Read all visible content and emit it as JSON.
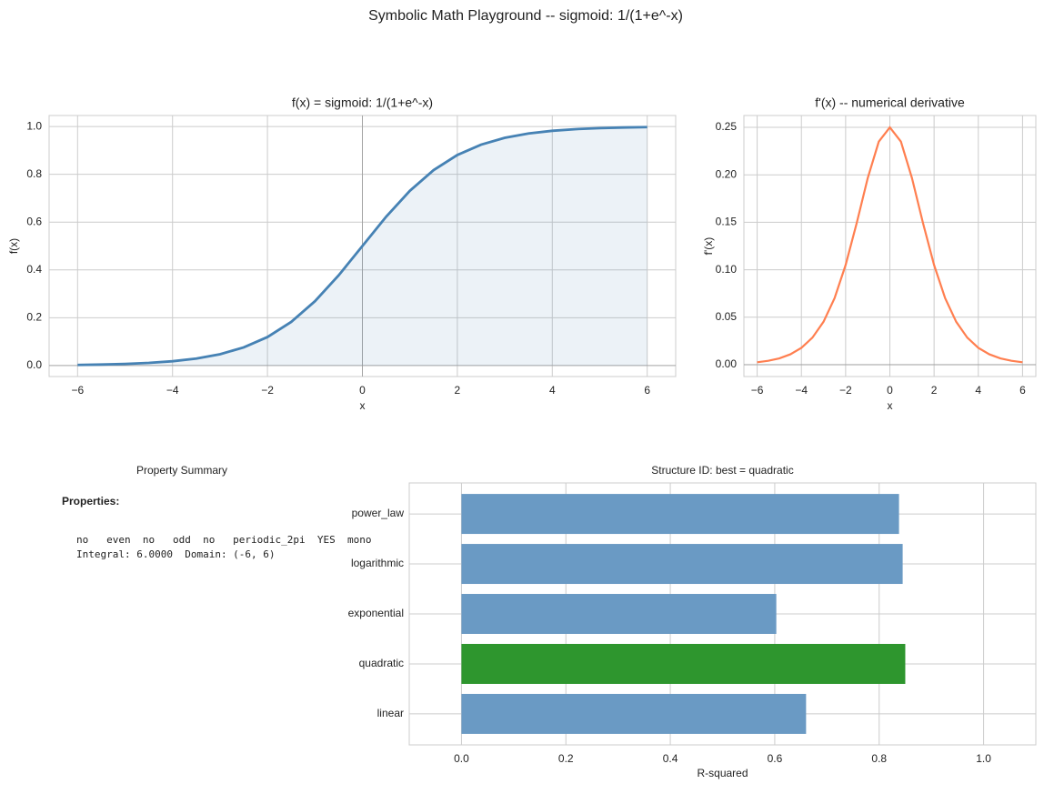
{
  "title": "Symbolic Math Playground -- sigmoid: 1/(1+e^-x)",
  "chart_data": [
    {
      "type": "line",
      "title": "f(x) = sigmoid: 1/(1+e^-x)",
      "xlabel": "x",
      "ylabel": "f(x)",
      "color": "#4682b4",
      "fill": true,
      "grid": true,
      "x": [
        -6,
        -5.5,
        -5,
        -4.5,
        -4,
        -3.5,
        -3,
        -2.5,
        -2,
        -1.5,
        -1,
        -0.5,
        0,
        0.5,
        1,
        1.5,
        2,
        2.5,
        3,
        3.5,
        4,
        4.5,
        5,
        5.5,
        6
      ],
      "values": [
        0.0025,
        0.0041,
        0.0067,
        0.011,
        0.018,
        0.0293,
        0.0474,
        0.0759,
        0.1192,
        0.1824,
        0.2689,
        0.3775,
        0.5,
        0.6225,
        0.7311,
        0.8176,
        0.8808,
        0.9241,
        0.9526,
        0.9707,
        0.982,
        0.989,
        0.9933,
        0.9959,
        0.9975
      ],
      "xlim": [
        -6.6,
        6.6
      ],
      "ylim": [
        -0.046,
        1.046
      ],
      "xticks": [
        {
          "value": -6,
          "label": "−6"
        },
        {
          "value": -4,
          "label": "−4"
        },
        {
          "value": -2,
          "label": "−2"
        },
        0,
        2,
        4,
        6
      ],
      "yticks": [
        {
          "value": 0,
          "label": "0.0"
        },
        0.2,
        0.4,
        0.6,
        0.8,
        {
          "value": 1,
          "label": "1.0"
        }
      ]
    },
    {
      "type": "line",
      "title": "f'(x) -- numerical derivative",
      "xlabel": "x",
      "ylabel": "f'(x)",
      "color": "#ff7f50",
      "fill": false,
      "grid": true,
      "x": [
        -6,
        -5.5,
        -5,
        -4.5,
        -4,
        -3.5,
        -3,
        -2.5,
        -2,
        -1.5,
        -1,
        -0.5,
        0,
        0.5,
        1,
        1.5,
        2,
        2.5,
        3,
        3.5,
        4,
        4.5,
        5,
        5.5,
        6
      ],
      "values": [
        0.0025,
        0.0041,
        0.0066,
        0.0109,
        0.0177,
        0.0285,
        0.0452,
        0.0701,
        0.105,
        0.1491,
        0.1966,
        0.235,
        0.25,
        0.235,
        0.1966,
        0.1491,
        0.105,
        0.0701,
        0.0452,
        0.0285,
        0.0177,
        0.0109,
        0.0066,
        0.0041,
        0.0025
      ],
      "xlim": [
        -6.6,
        6.6
      ],
      "ylim": [
        -0.0125,
        0.2625
      ],
      "xticks": [
        {
          "value": -6,
          "label": "−6"
        },
        {
          "value": -4,
          "label": "−4"
        },
        {
          "value": -2,
          "label": "−2"
        },
        0,
        2,
        4,
        6
      ],
      "yticks": [
        {
          "value": 0,
          "label": "0.00"
        },
        0.05,
        {
          "value": 0.1,
          "label": "0.10"
        },
        0.15,
        {
          "value": 0.2,
          "label": "0.20"
        },
        0.25
      ]
    },
    {
      "type": "text",
      "title": "Property Summary",
      "heading": "Properties:",
      "lines": [
        "no   even  no   odd  no   periodic_2pi  YES  mono",
        "Integral: 6.0000  Domain: (-6, 6)"
      ]
    },
    {
      "type": "barh",
      "title": "Structure ID: best = quadratic",
      "xlabel": "R-squared",
      "grid": true,
      "categories": [
        "linear",
        "quadratic",
        "exponential",
        "logarithmic",
        "power_law"
      ],
      "values": [
        0.66,
        0.85,
        0.603,
        0.845,
        0.838
      ],
      "colors": [
        "#6a9ac4",
        "#2e962e",
        "#6a9ac4",
        "#6a9ac4",
        "#6a9ac4"
      ],
      "xlim": [
        -0.1,
        1.1
      ],
      "xticks": [
        {
          "value": 0,
          "label": "0.0"
        },
        0.2,
        0.4,
        0.6,
        0.8,
        {
          "value": 1,
          "label": "1.0"
        }
      ]
    }
  ]
}
